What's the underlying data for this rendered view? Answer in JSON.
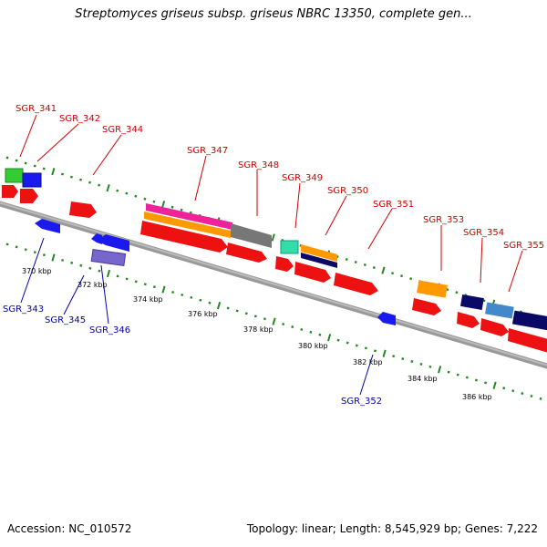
{
  "title": "Streptomyces griseus subsp. griseus NBRC 13350, complete gen...",
  "footer": {
    "accession": "Accession: NC_010572",
    "summary": "Topology: linear; Length: 8,545,929 bp; Genes: 7,222"
  },
  "colors": {
    "label_top": "#cc0000",
    "label_bottom": "#0000aa",
    "tick": "#228822",
    "axis": "#888888",
    "red": "#ee1111",
    "blue": "#1a1aee",
    "green": "#33cc33",
    "magenta": "#ee2299",
    "orange": "#ff9900",
    "gray": "#777777",
    "navy": "#0a0a66",
    "teal": "#33ddaa",
    "lavender": "#7766cc",
    "steel": "#4488cc"
  },
  "genes_top": [
    {
      "label": "SGR_341"
    },
    {
      "label": "SGR_342"
    },
    {
      "label": "SGR_344"
    },
    {
      "label": "SGR_347"
    },
    {
      "label": "SGR_348"
    },
    {
      "label": "SGR_349"
    },
    {
      "label": "SGR_350"
    },
    {
      "label": "SGR_351"
    },
    {
      "label": "SGR_353"
    },
    {
      "label": "SGR_354"
    },
    {
      "label": "SGR_355"
    }
  ],
  "genes_bottom": [
    {
      "label": "SGR_343"
    },
    {
      "label": "SGR_345"
    },
    {
      "label": "SGR_346"
    },
    {
      "label": "SGR_352"
    }
  ],
  "scale_labels": [
    "370 kbp",
    "372 kbp",
    "374 kbp",
    "376 kbp",
    "378 kbp",
    "380 kbp",
    "382 kbp",
    "384 kbp",
    "386 kbp"
  ]
}
